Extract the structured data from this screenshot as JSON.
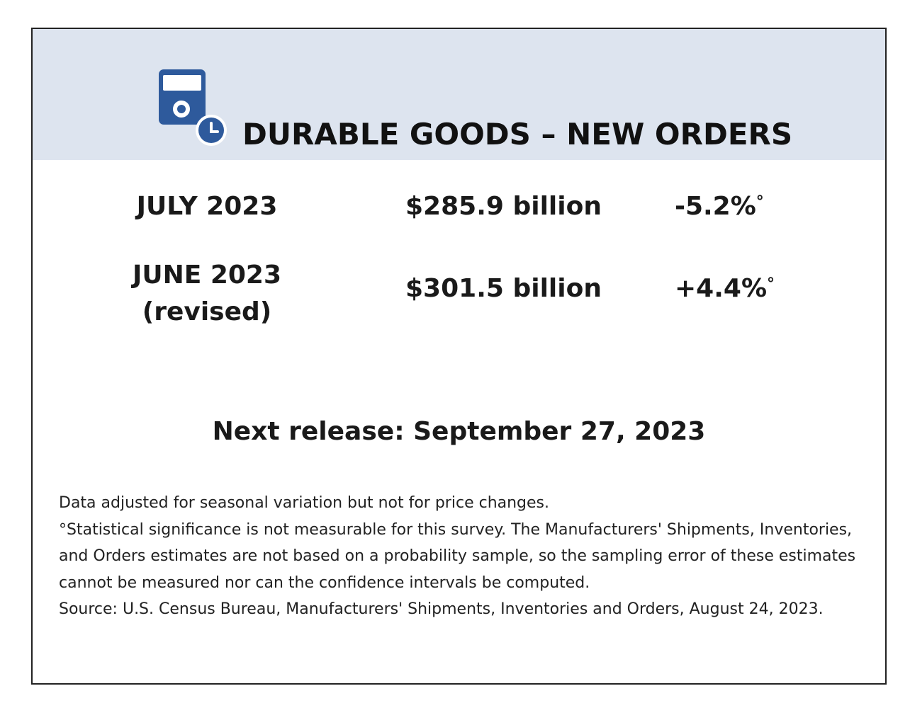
{
  "title": "DURABLE GOODS – NEW ORDERS",
  "icon": "durable-goods-appliance-clock-icon",
  "colors": {
    "banner_background": "#dde4ef",
    "icon_blue": "#2e5a9c"
  },
  "rows": [
    {
      "label": "JULY 2023",
      "sublabel": "",
      "value": "$285.9 billion",
      "change": "-5.2%",
      "marker": "°"
    },
    {
      "label": "JUNE 2023",
      "sublabel": "(revised)",
      "value": "$301.5 billion",
      "change": "+4.4%",
      "marker": "°"
    }
  ],
  "next_release": "Next release: September 27, 2023",
  "notes": [
    "Data adjusted for seasonal variation but not for price changes.",
    "°Statistical significance is not measurable for this survey.  The Manufacturers' Shipments, Inventories, and Orders estimates are not based on a probability sample, so the sampling error of these estimates cannot be measured nor can the confidence intervals be computed.",
    "Source: U.S. Census Bureau, Manufacturers' Shipments, Inventories and Orders, August 24, 2023."
  ]
}
